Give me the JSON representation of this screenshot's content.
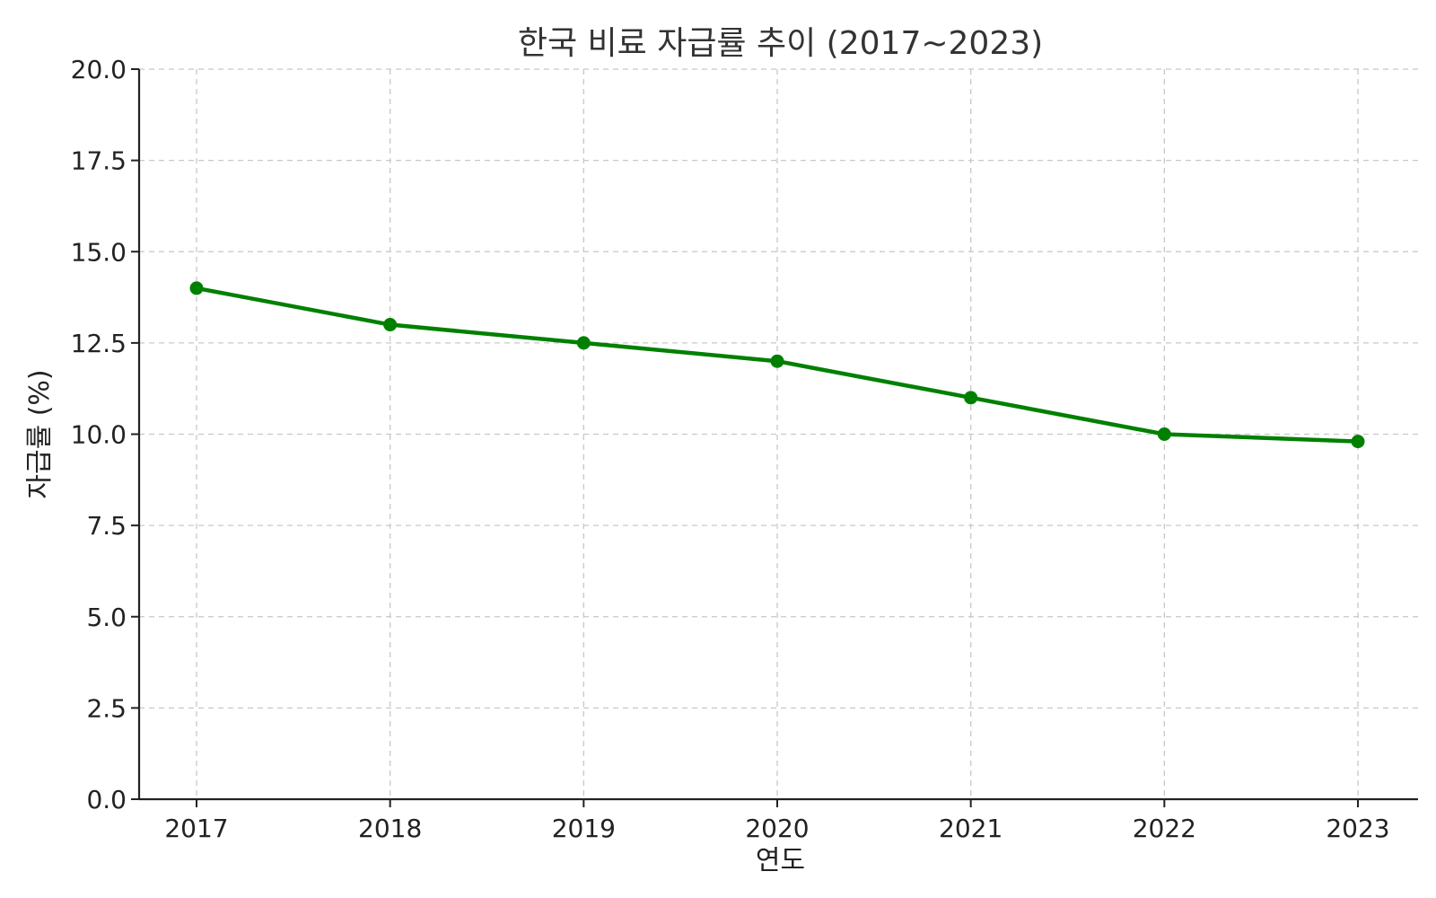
{
  "chart_data": {
    "type": "line",
    "title": "한국 비료 자급률 추이 (2017~2023)",
    "xlabel": "연도",
    "ylabel": "자급률 (%)",
    "categories": [
      "2017",
      "2018",
      "2019",
      "2020",
      "2021",
      "2022",
      "2023"
    ],
    "series": [
      {
        "values": [
          14.0,
          13.0,
          12.5,
          12.0,
          11.0,
          10.0,
          9.8
        ],
        "color": "#008000",
        "marker": "circle"
      }
    ],
    "ylim": [
      0,
      20
    ],
    "yticks": [
      "0.0",
      "2.5",
      "5.0",
      "7.5",
      "10.0",
      "12.5",
      "15.0",
      "17.5",
      "20.0"
    ],
    "grid": true,
    "legend": "none"
  }
}
